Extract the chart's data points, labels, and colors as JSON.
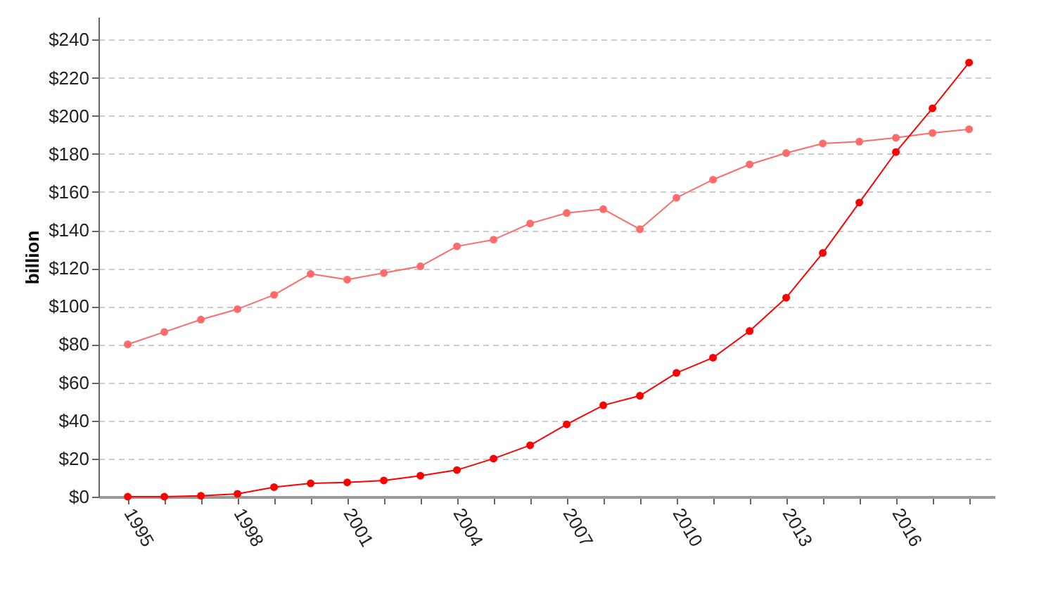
{
  "chart_data": {
    "type": "line",
    "ylabel": "billion",
    "x": [
      1995,
      1996,
      1997,
      1998,
      1999,
      2000,
      2001,
      2002,
      2003,
      2004,
      2005,
      2006,
      2007,
      2008,
      2009,
      2010,
      2011,
      2012,
      2013,
      2014,
      2015,
      2016,
      2017,
      2018
    ],
    "series": [
      {
        "color": "#ff6b6b",
        "values": [
          80,
          86.5,
          93,
          98.5,
          106,
          117,
          114,
          117.5,
          121,
          131.5,
          135,
          143.5,
          149,
          151,
          140.5,
          157,
          166.5,
          174.5,
          180.5,
          185.5,
          186.5,
          188.5,
          191,
          193
        ]
      },
      {
        "color": "#ff0000",
        "values": [
          0,
          0,
          0.5,
          1.5,
          5,
          7,
          7.5,
          8.5,
          11,
          14,
          20,
          27,
          38,
          48,
          53,
          65,
          73,
          87,
          104.5,
          128,
          154.5,
          181,
          204,
          228
        ]
      }
    ],
    "xlim": [
      1994.2,
      2018.7
    ],
    "xticks": [
      {
        "value": 1995,
        "label": "1995"
      },
      {
        "value": 1996,
        "label": null
      },
      {
        "value": 1997,
        "label": null
      },
      {
        "value": 1998,
        "label": "1998"
      },
      {
        "value": 1999,
        "label": null
      },
      {
        "value": 2000,
        "label": null
      },
      {
        "value": 2001,
        "label": "2001"
      },
      {
        "value": 2002,
        "label": null
      },
      {
        "value": 2003,
        "label": null
      },
      {
        "value": 2004,
        "label": "2004"
      },
      {
        "value": 2005,
        "label": null
      },
      {
        "value": 2006,
        "label": null
      },
      {
        "value": 2007,
        "label": "2007"
      },
      {
        "value": 2008,
        "label": null
      },
      {
        "value": 2009,
        "label": null
      },
      {
        "value": 2010,
        "label": "2010"
      },
      {
        "value": 2011,
        "label": null
      },
      {
        "value": 2012,
        "label": null
      },
      {
        "value": 2013,
        "label": "2013"
      },
      {
        "value": 2014,
        "label": null
      },
      {
        "value": 2015,
        "label": null
      },
      {
        "value": 2016,
        "label": "2016"
      },
      {
        "value": 2017,
        "label": null
      },
      {
        "value": 2018,
        "label": null
      }
    ],
    "ylim": [
      0,
      252
    ],
    "yticks": [
      {
        "value": 0,
        "label": "$0"
      },
      {
        "value": 20,
        "label": "$20"
      },
      {
        "value": 40,
        "label": "$40"
      },
      {
        "value": 60,
        "label": "$60"
      },
      {
        "value": 80,
        "label": "$80"
      },
      {
        "value": 100,
        "label": "$100"
      },
      {
        "value": 120,
        "label": "$120"
      },
      {
        "value": 140,
        "label": "$140"
      },
      {
        "value": 160,
        "label": "$160"
      },
      {
        "value": 180,
        "label": "$180"
      },
      {
        "value": 200,
        "label": "$200"
      },
      {
        "value": 220,
        "label": "$220"
      },
      {
        "value": 240,
        "label": "$240"
      }
    ],
    "grid": "y",
    "marker": "circle",
    "line_style": "solid"
  }
}
